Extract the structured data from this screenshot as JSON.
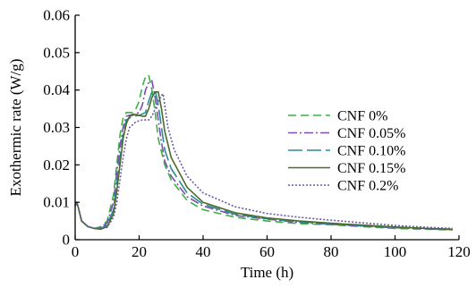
{
  "chart_data": {
    "type": "line",
    "title": "",
    "xlabel": "Time (h)",
    "ylabel": "Exothermic rate (W/g)",
    "xlim": [
      0,
      120
    ],
    "ylim": [
      0,
      0.06
    ],
    "xticks": [
      0,
      20,
      40,
      60,
      80,
      100,
      120
    ],
    "yticks": [
      0,
      0.01,
      0.02,
      0.03,
      0.04,
      0.05,
      0.06
    ],
    "xtick_labels": [
      "0",
      "20",
      "40",
      "60",
      "80",
      "100",
      "120"
    ],
    "ytick_labels": [
      "0",
      "0.01",
      "0.02",
      "0.03",
      "0.04",
      "0.05",
      "0.06"
    ],
    "grid": false,
    "legend_position": "right-center",
    "series": [
      {
        "name": "CNF 0%",
        "color": "#3cb044",
        "dash": "9,5",
        "points": [
          [
            0,
            0.009
          ],
          [
            0.5,
            0.01
          ],
          [
            1,
            0.0085
          ],
          [
            2,
            0.005
          ],
          [
            4,
            0.0035
          ],
          [
            6,
            0.003
          ],
          [
            8,
            0.0035
          ],
          [
            10,
            0.005
          ],
          [
            12,
            0.012
          ],
          [
            13,
            0.02
          ],
          [
            14,
            0.028
          ],
          [
            15,
            0.0325
          ],
          [
            16,
            0.034
          ],
          [
            18,
            0.034
          ],
          [
            19,
            0.035
          ],
          [
            20,
            0.037
          ],
          [
            21,
            0.041
          ],
          [
            22,
            0.0435
          ],
          [
            23,
            0.044
          ],
          [
            24,
            0.04
          ],
          [
            25,
            0.034
          ],
          [
            26,
            0.027
          ],
          [
            28,
            0.02
          ],
          [
            30,
            0.016
          ],
          [
            35,
            0.0105
          ],
          [
            40,
            0.008
          ],
          [
            50,
            0.006
          ],
          [
            60,
            0.005
          ],
          [
            70,
            0.0043
          ],
          [
            80,
            0.004
          ],
          [
            90,
            0.0035
          ],
          [
            100,
            0.003
          ],
          [
            110,
            0.0028
          ],
          [
            118,
            0.0026
          ]
        ]
      },
      {
        "name": "CNF 0.05%",
        "color": "#7a4fb0",
        "dash": "10,3,2,3",
        "points": [
          [
            0,
            0.009
          ],
          [
            0.5,
            0.01
          ],
          [
            1,
            0.0085
          ],
          [
            2,
            0.005
          ],
          [
            4,
            0.0035
          ],
          [
            6,
            0.003
          ],
          [
            8,
            0.0033
          ],
          [
            10,
            0.0045
          ],
          [
            12,
            0.01
          ],
          [
            13,
            0.018
          ],
          [
            14,
            0.025
          ],
          [
            15,
            0.03
          ],
          [
            16,
            0.033
          ],
          [
            18,
            0.0335
          ],
          [
            20,
            0.034
          ],
          [
            21,
            0.036
          ],
          [
            22,
            0.04
          ],
          [
            23,
            0.042
          ],
          [
            24,
            0.0425
          ],
          [
            25,
            0.038
          ],
          [
            26,
            0.032
          ],
          [
            27,
            0.026
          ],
          [
            28,
            0.021
          ],
          [
            30,
            0.017
          ],
          [
            35,
            0.0115
          ],
          [
            40,
            0.009
          ],
          [
            50,
            0.0065
          ],
          [
            60,
            0.0055
          ],
          [
            70,
            0.0046
          ],
          [
            80,
            0.0041
          ],
          [
            90,
            0.0036
          ],
          [
            100,
            0.0032
          ],
          [
            110,
            0.0029
          ],
          [
            118,
            0.0027
          ]
        ]
      },
      {
        "name": "CNF 0.10%",
        "color": "#2a8a98",
        "dash": "16,5",
        "points": [
          [
            0,
            0.009
          ],
          [
            0.5,
            0.01
          ],
          [
            1,
            0.0085
          ],
          [
            2,
            0.005
          ],
          [
            4,
            0.0035
          ],
          [
            6,
            0.003
          ],
          [
            8,
            0.003
          ],
          [
            10,
            0.004
          ],
          [
            12,
            0.008
          ],
          [
            13,
            0.015
          ],
          [
            14,
            0.022
          ],
          [
            15,
            0.028
          ],
          [
            16,
            0.032
          ],
          [
            18,
            0.033
          ],
          [
            20,
            0.0332
          ],
          [
            22,
            0.034
          ],
          [
            23,
            0.037
          ],
          [
            24,
            0.0395
          ],
          [
            25,
            0.04
          ],
          [
            26,
            0.036
          ],
          [
            27,
            0.03
          ],
          [
            28,
            0.024
          ],
          [
            30,
            0.019
          ],
          [
            35,
            0.0125
          ],
          [
            40,
            0.0095
          ],
          [
            50,
            0.0068
          ],
          [
            60,
            0.0056
          ],
          [
            70,
            0.0048
          ],
          [
            80,
            0.0042
          ],
          [
            90,
            0.0037
          ],
          [
            100,
            0.0033
          ],
          [
            110,
            0.003
          ],
          [
            118,
            0.0027
          ]
        ]
      },
      {
        "name": "CNF 0.15%",
        "color": "#4a6b2a",
        "dash": "",
        "points": [
          [
            0,
            0.009
          ],
          [
            0.5,
            0.01
          ],
          [
            1,
            0.0085
          ],
          [
            2,
            0.005
          ],
          [
            4,
            0.0035
          ],
          [
            6,
            0.003
          ],
          [
            8,
            0.0028
          ],
          [
            10,
            0.0035
          ],
          [
            12,
            0.007
          ],
          [
            13,
            0.013
          ],
          [
            14,
            0.02
          ],
          [
            15,
            0.027
          ],
          [
            16,
            0.031
          ],
          [
            17,
            0.033
          ],
          [
            19,
            0.0335
          ],
          [
            21,
            0.033
          ],
          [
            22,
            0.033
          ],
          [
            23,
            0.035
          ],
          [
            24,
            0.038
          ],
          [
            25,
            0.0395
          ],
          [
            26,
            0.0395
          ],
          [
            27,
            0.035
          ],
          [
            28,
            0.029
          ],
          [
            30,
            0.022
          ],
          [
            35,
            0.014
          ],
          [
            40,
            0.01
          ],
          [
            50,
            0.0072
          ],
          [
            60,
            0.0058
          ],
          [
            70,
            0.005
          ],
          [
            80,
            0.0044
          ],
          [
            90,
            0.0039
          ],
          [
            100,
            0.0034
          ],
          [
            110,
            0.003
          ],
          [
            118,
            0.0028
          ]
        ]
      },
      {
        "name": "CNF 0.2%",
        "color": "#6a5aa8",
        "dash": "2,2",
        "points": [
          [
            0,
            0.009
          ],
          [
            0.5,
            0.01
          ],
          [
            1,
            0.0085
          ],
          [
            2,
            0.005
          ],
          [
            4,
            0.0035
          ],
          [
            6,
            0.003
          ],
          [
            8,
            0.003
          ],
          [
            10,
            0.0033
          ],
          [
            12,
            0.006
          ],
          [
            13,
            0.01
          ],
          [
            14,
            0.016
          ],
          [
            15,
            0.022
          ],
          [
            16,
            0.027
          ],
          [
            17,
            0.03
          ],
          [
            19,
            0.0315
          ],
          [
            21,
            0.032
          ],
          [
            23,
            0.032
          ],
          [
            24,
            0.033
          ],
          [
            25,
            0.035
          ],
          [
            26,
            0.037
          ],
          [
            27,
            0.0385
          ],
          [
            27.5,
            0.039
          ],
          [
            28,
            0.036
          ],
          [
            29,
            0.03
          ],
          [
            31,
            0.024
          ],
          [
            35,
            0.017
          ],
          [
            40,
            0.0125
          ],
          [
            50,
            0.0088
          ],
          [
            60,
            0.007
          ],
          [
            70,
            0.006
          ],
          [
            80,
            0.0052
          ],
          [
            90,
            0.0045
          ],
          [
            100,
            0.0038
          ],
          [
            110,
            0.0033
          ],
          [
            118,
            0.003
          ]
        ]
      }
    ]
  }
}
